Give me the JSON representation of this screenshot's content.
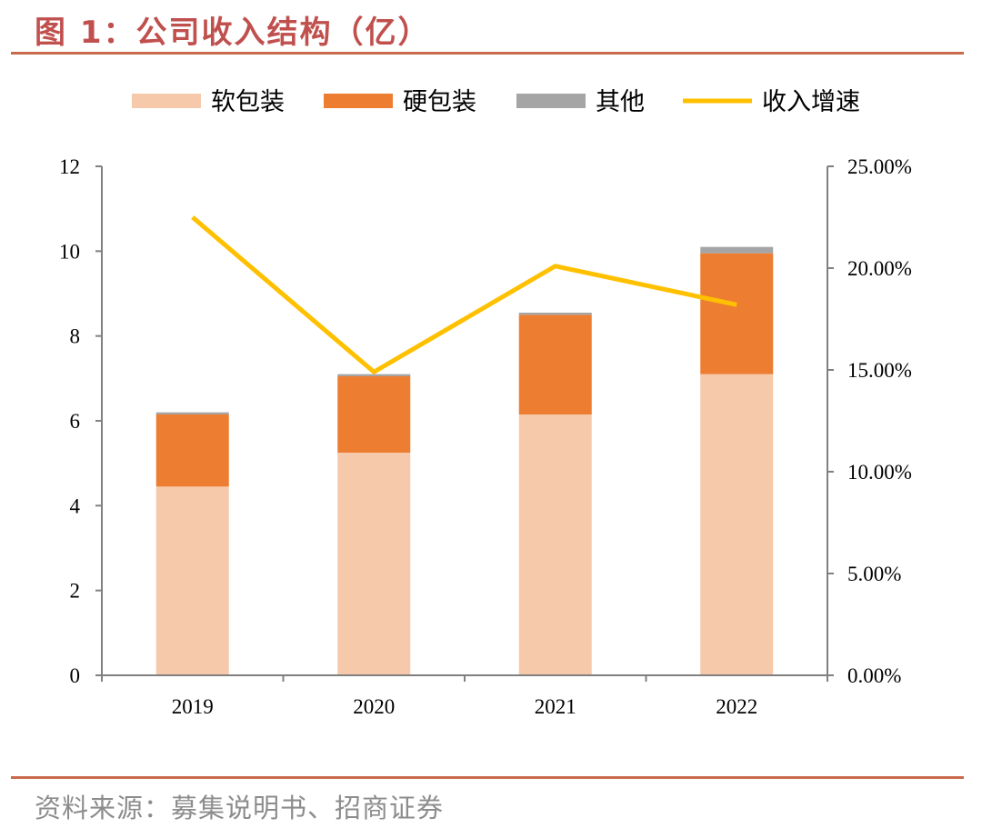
{
  "figure": {
    "title": "图 1：公司收入结构（亿）",
    "source": "资料来源：募集说明书、招商证券"
  },
  "chart_data": {
    "type": "bar",
    "stacked": true,
    "categories": [
      "2019",
      "2020",
      "2021",
      "2022"
    ],
    "series": [
      {
        "name": "软包装",
        "type": "bar",
        "axis": "left",
        "color": "#f6c9aa",
        "values": [
          4.45,
          5.25,
          6.15,
          7.1
        ]
      },
      {
        "name": "硬包装",
        "type": "bar",
        "axis": "left",
        "color": "#ed7d31",
        "values": [
          1.7,
          1.8,
          2.35,
          2.85
        ]
      },
      {
        "name": "其他",
        "type": "bar",
        "axis": "left",
        "color": "#a5a5a5",
        "values": [
          0.05,
          0.05,
          0.05,
          0.15
        ]
      },
      {
        "name": "收入增速",
        "type": "line",
        "axis": "right",
        "color": "#ffc000",
        "values": [
          0.225,
          0.149,
          0.201,
          0.182
        ]
      }
    ],
    "left_axis": {
      "ylim": [
        0,
        12
      ],
      "ticks": [
        "0",
        "2",
        "4",
        "6",
        "8",
        "10",
        "12"
      ]
    },
    "right_axis": {
      "ylim": [
        0,
        0.25
      ],
      "ticks": [
        "0.00%",
        "5.00%",
        "10.00%",
        "15.00%",
        "20.00%",
        "25.00%"
      ]
    },
    "legend_position": "top",
    "grid": false
  }
}
